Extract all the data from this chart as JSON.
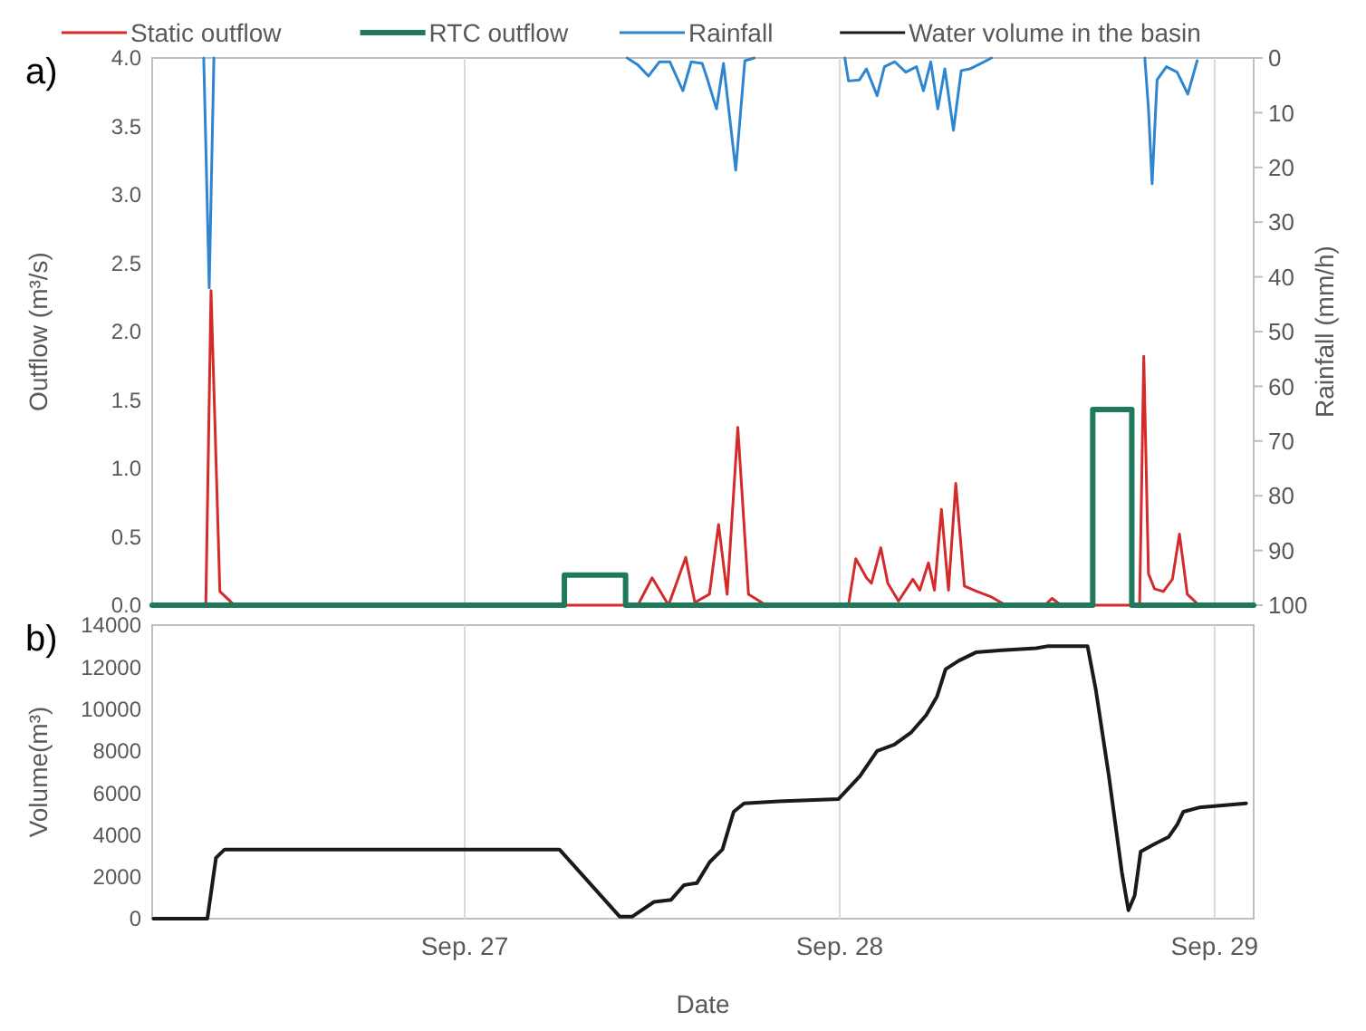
{
  "chart_data": [
    {
      "type": "line",
      "title": "a)",
      "ylabel": "Outflow (m³/s)",
      "y2label": "Rainfall (mm/h)",
      "xlim": [
        "--09-26T04:00",
        "--09-29T02:30"
      ],
      "xticks": [
        {
          "value": "--09-27",
          "label": null
        },
        {
          "value": "--09-28",
          "label": null
        },
        {
          "value": "--09-29",
          "label": null
        }
      ],
      "ylim": [
        0,
        4
      ],
      "yticks": [
        {
          "value": 0,
          "label": "0.0"
        },
        {
          "value": 0.5,
          "label": "0.5"
        },
        {
          "value": 1,
          "label": "1.0"
        },
        {
          "value": 1.5,
          "label": "1.5"
        },
        {
          "value": 2,
          "label": "2.0"
        },
        {
          "value": 2.5,
          "label": "2.5"
        },
        {
          "value": 3,
          "label": "3.0"
        },
        {
          "value": 3.5,
          "label": "3.5"
        },
        {
          "value": 4,
          "label": "4.0"
        }
      ],
      "y2lim": [
        100,
        0
      ],
      "y2ticks": [
        0,
        10,
        20,
        30,
        40,
        50,
        60,
        70,
        80,
        90,
        100
      ],
      "grid": "x",
      "tick_labels": "y",
      "legend": "top",
      "series": [
        {
          "name": "Static outflow",
          "color": "#d42a2a",
          "x": [
            "--09-26T04:00",
            "--09-26T07:26",
            "--09-26T07:46",
            "--09-26T08:20",
            "--09-26T09:16",
            "--09-27T11:05",
            "--09-27T12:00",
            "--09-27T13:03",
            "--09-27T14:09",
            "--09-27T14:44",
            "--09-27T15:40",
            "--09-27T16:15",
            "--09-27T16:48",
            "--09-27T17:29",
            "--09-27T18:10",
            "--09-27T19:18",
            "--09-28T00:34",
            "--09-28T01:02",
            "--09-28T01:43",
            "--09-28T02:02",
            "--09-28T02:38",
            "--09-28T03:05",
            "--09-28T03:46",
            "--09-28T04:41",
            "--09-28T05:08",
            "--09-28T05:41",
            "--09-28T06:04",
            "--09-28T06:31",
            "--09-28T06:58",
            "--09-28T07:26",
            "--09-28T07:59",
            "--09-28T08:48",
            "--09-28T09:43",
            "--09-28T10:38",
            "--09-28T13:08",
            "--09-28T13:36",
            "--09-28T14:10",
            "--09-28T19:12",
            "--09-28T19:28",
            "--09-28T19:46",
            "--09-28T20:09",
            "--09-28T20:43",
            "--09-28T21:18",
            "--09-28T21:45",
            "--09-28T22:15",
            "--09-28T23:00",
            "--09-29T02:30"
          ],
          "values": [
            0,
            0,
            2.3,
            0.1,
            0,
            0,
            0.2,
            0,
            0.35,
            0.02,
            0.08,
            0.59,
            0.08,
            1.3,
            0.08,
            0,
            0,
            0.34,
            0.2,
            0.16,
            0.42,
            0.16,
            0.03,
            0.19,
            0.11,
            0.31,
            0.11,
            0.7,
            0.11,
            0.89,
            0.14,
            0.1,
            0.06,
            0,
            0,
            0.05,
            0,
            0,
            1.82,
            0.23,
            0.12,
            0.1,
            0.19,
            0.52,
            0.08,
            0,
            0
          ]
        },
        {
          "name": "RTC outflow",
          "color": "#1e7a5a",
          "x": [
            "--09-26T04:00",
            "--09-27T06:23",
            "--09-27T06:23",
            "--09-27T10:18",
            "--09-27T10:18",
            "--09-28T16:12",
            "--09-28T16:12",
            "--09-28T18:42",
            "--09-28T18:42",
            "--09-29T02:30"
          ],
          "values": [
            0,
            0,
            0.22,
            0.22,
            0,
            0,
            1.43,
            1.43,
            0,
            0
          ]
        },
        {
          "name": "Rainfall",
          "color": "#2e86d0",
          "axis": "y2",
          "x": [
            "--09-26T07:18",
            "--09-26T07:39",
            "--09-26T07:57",
            "--09-26T10:00",
            "--09-27T10:24",
            "--09-27T11:06",
            "--09-27T11:46",
            "--09-27T12:28",
            "--09-27T13:08",
            "--09-27T13:58",
            "--09-27T14:30",
            "--09-27T15:12",
            "--09-27T15:31",
            "--09-27T16:07",
            "--09-27T16:34",
            "--09-27T17:21",
            "--09-27T17:56",
            "--09-27T18:32",
            "--09-27T20:00",
            "--09-28T00:20",
            "--09-28T00:34",
            "--09-28T01:16",
            "--09-28T01:43",
            "--09-28T02:24",
            "--09-28T02:52",
            "--09-28T03:32",
            "--09-28T04:14",
            "--09-28T04:55",
            "--09-28T05:22",
            "--09-28T05:50",
            "--09-28T06:17",
            "--09-28T06:44",
            "--09-28T07:17",
            "--09-28T07:47",
            "--09-28T08:20",
            "--09-28T09:02",
            "--09-28T09:43",
            "--09-28T11:00",
            "--09-28T19:32",
            "--09-28T19:46",
            "--09-28T20:00",
            "--09-28T20:19",
            "--09-28T20:55",
            "--09-28T21:36",
            "--09-28T22:17",
            "--09-28T22:53"
          ],
          "values": [
            0,
            42,
            0,
            null,
            0,
            1.3,
            3.3,
            0.7,
            0.7,
            6,
            0.7,
            1,
            3.7,
            9.3,
            1,
            20.5,
            0.5,
            0,
            null,
            0,
            4.2,
            4,
            2,
            6.9,
            1.6,
            0.7,
            2.6,
            1.6,
            6,
            0.7,
            9.3,
            2,
            13.2,
            2.3,
            2,
            1,
            0,
            null,
            0,
            9.3,
            23,
            4,
            1.6,
            2.6,
            6.6,
            0.5
          ]
        }
      ]
    },
    {
      "type": "line",
      "title": "b)",
      "xlabel": "Date",
      "ylabel": "Volume(m³)",
      "xlim": [
        "--09-26T04:00",
        "--09-29T02:30"
      ],
      "xticks": [
        {
          "value": "--09-27",
          "label": "Sep. 27"
        },
        {
          "value": "--09-28",
          "label": "Sep. 28"
        },
        {
          "value": "--09-29",
          "label": "Sep. 29"
        }
      ],
      "ylim": [
        0,
        14000
      ],
      "yticks": [
        0,
        2000,
        4000,
        6000,
        8000,
        10000,
        12000,
        14000
      ],
      "grid": "x",
      "series": [
        {
          "name": "Water volume in the basin",
          "color": "#1a1a1a",
          "x": [
            "--09-26T04:05",
            "--09-26T07:32",
            "--09-26T08:05",
            "--09-26T08:38",
            "--09-27T06:04",
            "--09-27T09:55",
            "--09-27T10:44",
            "--09-27T12:07",
            "--09-27T13:13",
            "--09-27T14:02",
            "--09-27T14:52",
            "--09-27T15:41",
            "--09-27T16:30",
            "--09-27T17:13",
            "--09-27T17:53",
            "--09-27T20:05",
            "--09-27T23:55",
            "--09-28T01:18",
            "--09-28T02:24",
            "--09-28T03:30",
            "--09-28T04:36",
            "--09-28T05:32",
            "--09-28T06:14",
            "--09-28T06:47",
            "--09-28T07:37",
            "--09-28T08:43",
            "--09-28T10:22",
            "--09-28T12:34",
            "--09-28T13:22",
            "--09-28T15:52",
            "--09-28T16:24",
            "--09-28T17:14",
            "--09-28T18:04",
            "--09-28T18:29",
            "--09-28T18:53",
            "--09-28T19:16",
            "--09-28T20:15",
            "--09-28T21:04",
            "--09-28T21:37",
            "--09-28T22:00",
            "--09-28T23:00",
            "--09-29T02:01"
          ],
          "values": [
            0,
            0,
            2900,
            3300,
            3300,
            100,
            100,
            800,
            900,
            1600,
            1700,
            2700,
            3300,
            5100,
            5500,
            5600,
            5700,
            6800,
            8000,
            8300,
            8900,
            9700,
            10600,
            11900,
            12300,
            12700,
            12800,
            12900,
            13000,
            13000,
            10900,
            6800,
            2200,
            400,
            1100,
            3200,
            3600,
            3900,
            4500,
            5100,
            5300,
            5500
          ]
        }
      ]
    }
  ]
}
